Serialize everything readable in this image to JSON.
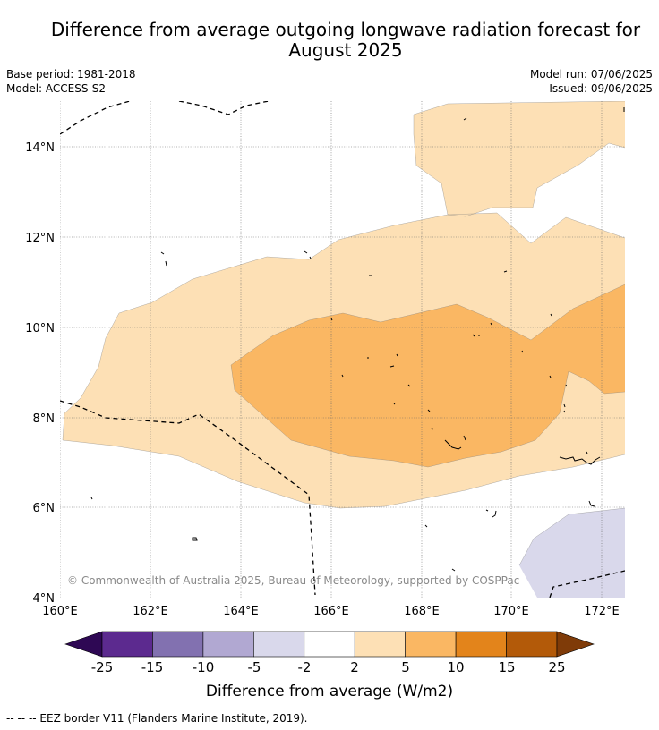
{
  "title_line1": "Difference from average outgoing longwave radiation forecast for",
  "title_line2": "August 2025",
  "base_period": "Base period: 1981-2018",
  "model": "Model: ACCESS-S2",
  "model_run": "Model run: 07/06/2025",
  "issued": "Issued: 09/06/2025",
  "map": {
    "lat_labels": [
      "14°N",
      "12°N",
      "10°N",
      "8°N",
      "6°N",
      "4°N"
    ],
    "lon_labels": [
      "160°E",
      "162°E",
      "164°E",
      "166°E",
      "168°E",
      "170°E",
      "172°E"
    ],
    "copyright": "© Commonwealth of Australia 2025, Bureau of Meteorology, supported by COSPPac"
  },
  "colorbar": {
    "ticks": [
      "-25",
      "-15",
      "-10",
      "-5",
      "-2",
      "2",
      "5",
      "10",
      "15",
      "25"
    ],
    "colors": [
      "#5c2a8f",
      "#8271b0",
      "#b1a8d2",
      "#d9d8eb",
      "#ffffff",
      "#fde0b5",
      "#fab763",
      "#e3841b",
      "#b35a09"
    ],
    "low_extend_color": "#2e0854",
    "high_extend_color": "#7f3b08",
    "label": "Difference from average (W/m2)"
  },
  "footnote": "--  --  -- EEZ border V11 (Flanders Marine Institute, 2019)."
}
